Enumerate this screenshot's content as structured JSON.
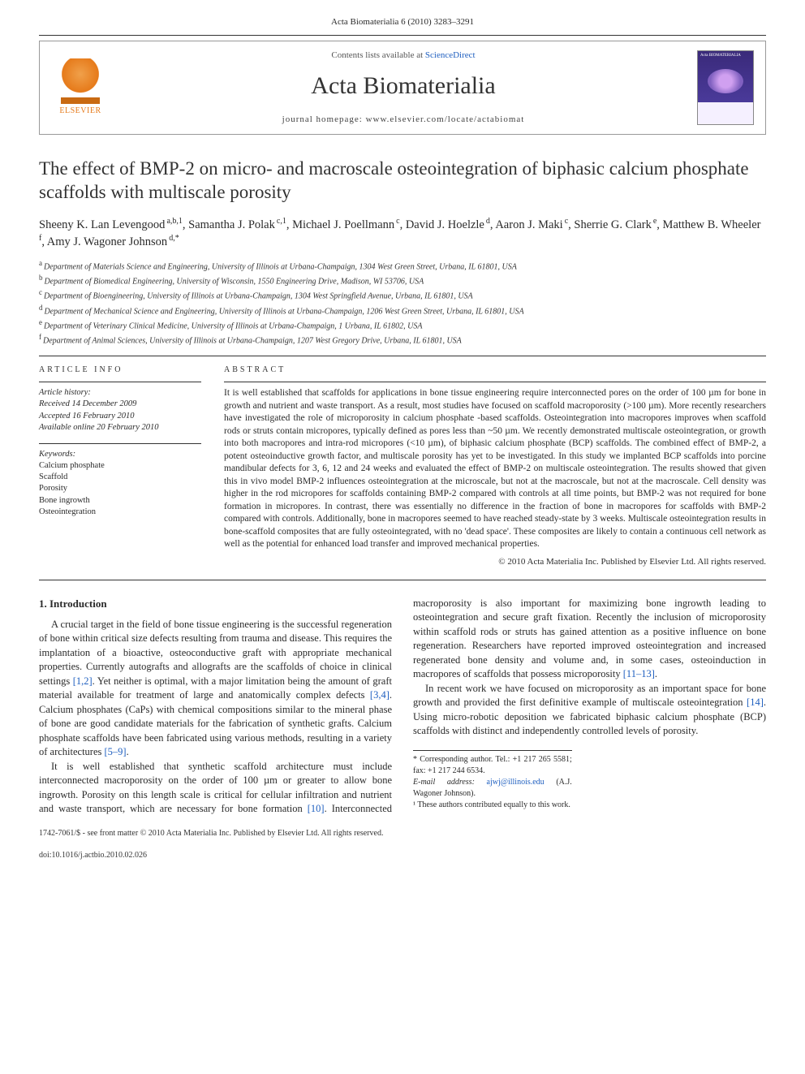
{
  "header": {
    "journal_ref": "Acta Biomaterialia 6 (2010) 3283–3291",
    "contents_prefix": "Contents lists available at ",
    "sciencedirect": "ScienceDirect",
    "journal_title": "Acta Biomaterialia",
    "homepage_prefix": "journal homepage: ",
    "homepage_url": "www.elsevier.com/locate/actabiomat",
    "publisher": "ELSEVIER",
    "cover_label": "Acta BIOMATERIALIA"
  },
  "article": {
    "title": "The effect of BMP-2 on micro- and macroscale osteointegration of biphasic calcium phosphate scaffolds with multiscale porosity",
    "authors_html": "Sheeny K. Lan Levengood",
    "authors": [
      {
        "name": "Sheeny K. Lan Levengood",
        "sup": "a,b,1"
      },
      {
        "name": "Samantha J. Polak",
        "sup": "c,1"
      },
      {
        "name": "Michael J. Poellmann",
        "sup": "c"
      },
      {
        "name": "David J. Hoelzle",
        "sup": "d"
      },
      {
        "name": "Aaron J. Maki",
        "sup": "c"
      },
      {
        "name": "Sherrie G. Clark",
        "sup": "e"
      },
      {
        "name": "Matthew B. Wheeler",
        "sup": "f"
      },
      {
        "name": "Amy J. Wagoner Johnson",
        "sup": "d,*"
      }
    ],
    "affiliations": [
      {
        "sup": "a",
        "text": "Department of Materials Science and Engineering, University of Illinois at Urbana-Champaign, 1304 West Green Street, Urbana, IL 61801, USA"
      },
      {
        "sup": "b",
        "text": "Department of Biomedical Engineering, University of Wisconsin, 1550 Engineering Drive, Madison, WI 53706, USA"
      },
      {
        "sup": "c",
        "text": "Department of Bioengineering, University of Illinois at Urbana-Champaign, 1304 West Springfield Avenue, Urbana, IL 61801, USA"
      },
      {
        "sup": "d",
        "text": "Department of Mechanical Science and Engineering, University of Illinois at Urbana-Champaign, 1206 West Green Street, Urbana, IL 61801, USA"
      },
      {
        "sup": "e",
        "text": "Department of Veterinary Clinical Medicine, University of Illinois at Urbana-Champaign, 1 Urbana, IL 61802, USA"
      },
      {
        "sup": "f",
        "text": "Department of Animal Sciences, University of Illinois at Urbana-Champaign, 1207 West Gregory Drive, Urbana, IL 61801, USA"
      }
    ]
  },
  "info": {
    "label_info": "ARTICLE INFO",
    "history_label": "Article history:",
    "received": "Received 14 December 2009",
    "accepted": "Accepted 16 February 2010",
    "online": "Available online 20 February 2010",
    "keywords_label": "Keywords:",
    "keywords": [
      "Calcium phosphate",
      "Scaffold",
      "Porosity",
      "Bone ingrowth",
      "Osteointegration"
    ]
  },
  "abstract": {
    "label": "ABSTRACT",
    "text": "It is well established that scaffolds for applications in bone tissue engineering require interconnected pores on the order of 100 µm for bone in growth and nutrient and waste transport. As a result, most studies have focused on scaffold macroporosity (>100 µm). More recently researchers have investigated the role of microporosity in calcium phosphate -based scaffolds. Osteointegration into macropores improves when scaffold rods or struts contain micropores, typically defined as pores less than ~50 µm. We recently demonstrated multiscale osteointegration, or growth into both macropores and intra-rod micropores (<10 µm), of biphasic calcium phosphate (BCP) scaffolds. The combined effect of BMP-2, a potent osteoinductive growth factor, and multiscale porosity has yet to be investigated. In this study we implanted BCP scaffolds into porcine mandibular defects for 3, 6, 12 and 24 weeks and evaluated the effect of BMP-2 on multiscale osteointegration. The results showed that given this in vivo model BMP-2 influences osteointegration at the microscale, but not at the macroscale, but not at the macroscale. Cell density was higher in the rod micropores for scaffolds containing BMP-2 compared with controls at all time points, but BMP-2 was not required for bone formation in micropores. In contrast, there was essentially no difference in the fraction of bone in macropores for scaffolds with BMP-2 compared with controls. Additionally, bone in macropores seemed to have reached steady-state by 3 weeks. Multiscale osteointegration results in bone-scaffold composites that are fully osteointegrated, with no 'dead space'. These composites are likely to contain a continuous cell network as well as the potential for enhanced load transfer and improved mechanical properties.",
    "copyright": "© 2010 Acta Materialia Inc. Published by Elsevier Ltd. All rights reserved."
  },
  "body": {
    "intro_heading": "1. Introduction",
    "para1": "A crucial target in the field of bone tissue engineering is the successful regeneration of bone within critical size defects resulting from trauma and disease. This requires the implantation of a bioactive, osteoconductive graft with appropriate mechanical properties. Currently autografts and allografts are the scaffolds of choice in clinical settings [1,2]. Yet neither is optimal, with a major limitation being the amount of graft material available for treatment of large and anatomically complex defects [3,4]. Calcium phosphates (CaPs) with chemical compositions similar to the mineral phase of bone are good candidate materials for the fabrication of synthetic grafts. Calcium phosphate scaffolds have been fabricated using various methods, resulting in a variety of architectures [5–9].",
    "para2": "It is well established that synthetic scaffold architecture must include interconnected macroporosity on the order of 100 µm or greater to allow bone ingrowth. Porosity on this length scale is critical for cellular infiltration and nutrient and waste transport, which are necessary for bone formation [10]. Interconnected macroporosity is also important for maximizing bone ingrowth leading to osteointegration and secure graft fixation. Recently the inclusion of microporosity within scaffold rods or struts has gained attention as a positive influence on bone regeneration. Researchers have reported improved osteointegration and increased regenerated bone density and volume and, in some cases, osteoinduction in macropores of scaffolds that possess microporosity [11–13].",
    "para3": "In recent work we have focused on microporosity as an important space for bone growth and provided the first definitive example of multiscale osteointegration [14]. Using micro-robotic deposition we fabricated biphasic calcium phosphate (BCP) scaffolds with distinct and independently controlled levels of porosity.",
    "refs": {
      "r12": "[1,2]",
      "r34": "[3,4]",
      "r59": "[5–9]",
      "r10": "[10]",
      "r1113": "[11–13]",
      "r14": "[14]"
    }
  },
  "footnotes": {
    "corr": "* Corresponding author. Tel.: +1 217 265 5581; fax: +1 217 244 6534.",
    "email_label": "E-mail address: ",
    "email": "ajwj@illinois.edu",
    "email_who": " (A.J. Wagoner Johnson).",
    "equal": "¹ These authors contributed equally to this work."
  },
  "footer": {
    "line1": "1742-7061/$ - see front matter © 2010 Acta Materialia Inc. Published by Elsevier Ltd. All rights reserved.",
    "doi": "doi:10.1016/j.actbio.2010.02.026"
  },
  "colors": {
    "link": "#2060c0",
    "text": "#2a2a2a",
    "rule": "#333333",
    "publisher_orange": "#e67a1a"
  }
}
